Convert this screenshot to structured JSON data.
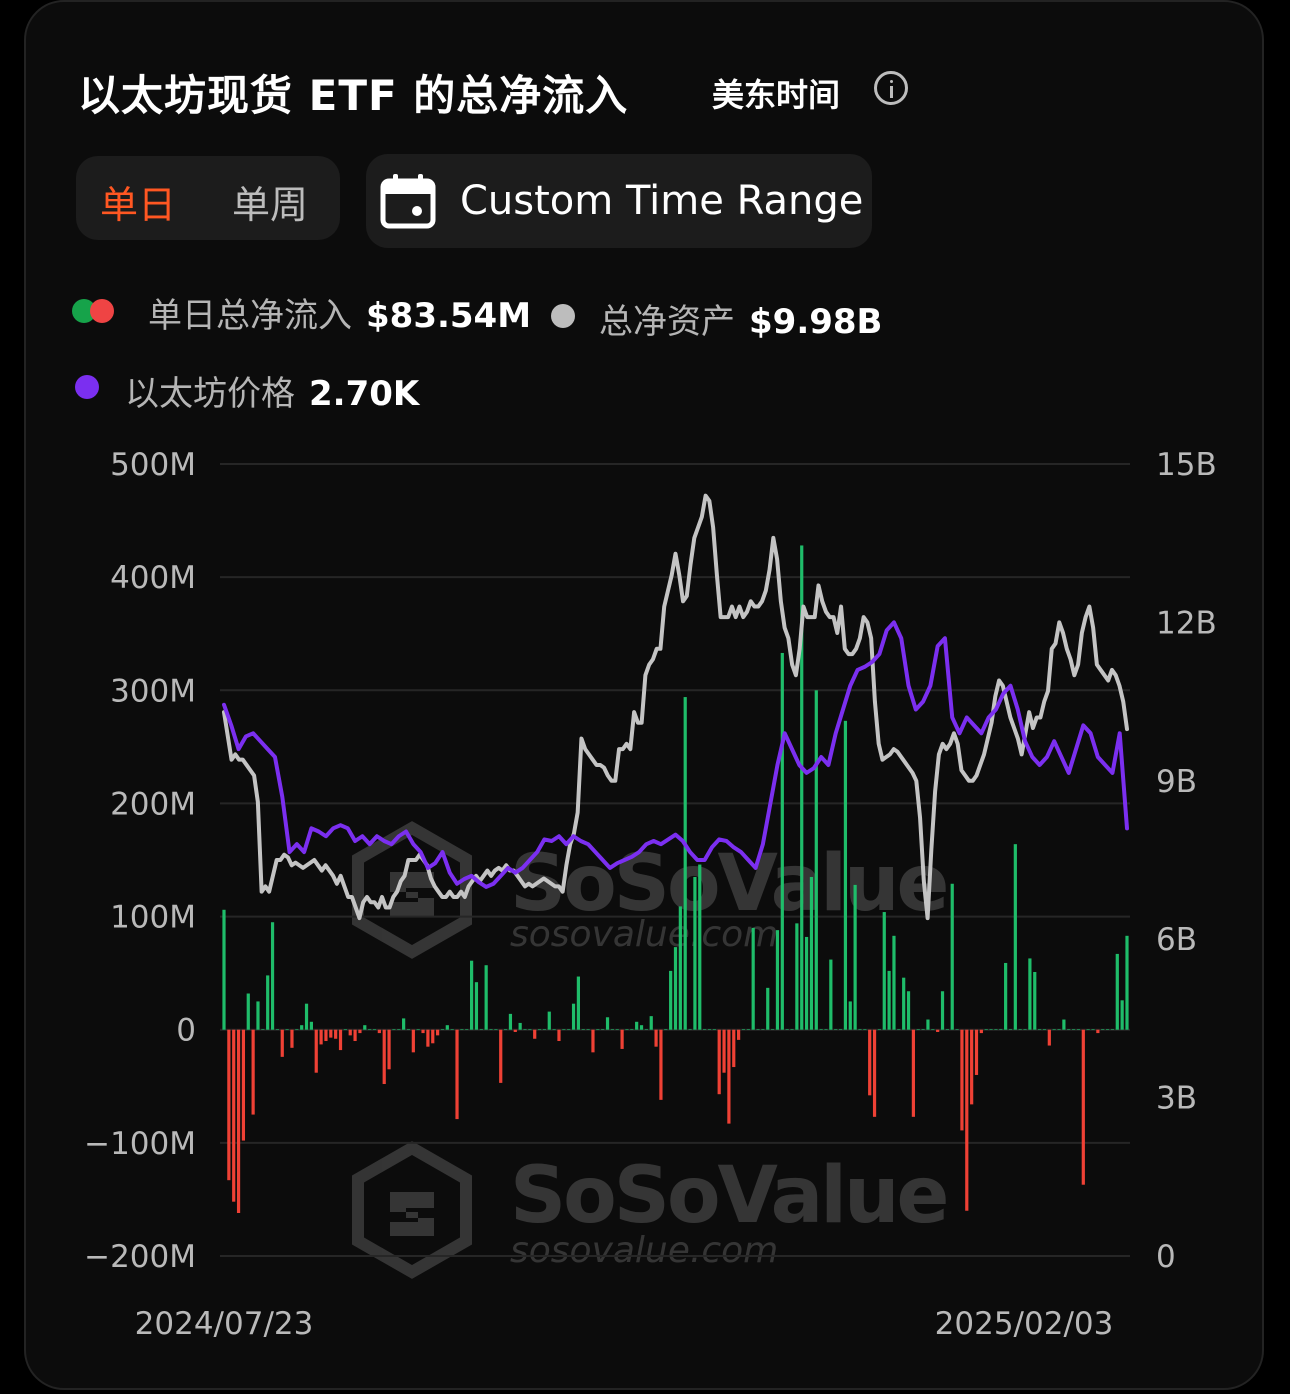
{
  "header": {
    "title": "以太坊现货 ETF 的总净流入",
    "timezone_label": "美东时间",
    "info_icon": "info-icon"
  },
  "period_toggle": {
    "daily_label": "单日",
    "weekly_label": "单周",
    "selected": "单日"
  },
  "range_button": {
    "label": "Custom Time Range",
    "icon": "calendar-icon"
  },
  "legend": {
    "daily_flow": {
      "name": "单日总净流入",
      "value": "$83.54M",
      "colors": [
        "#16a34a",
        "#ef4444"
      ]
    },
    "total_assets": {
      "name": "总净资产",
      "value": "$9.98B",
      "color": "#bdbdbd"
    },
    "eth_price": {
      "name": "以太坊价格",
      "value": "2.70K",
      "color": "#7c3aed"
    }
  },
  "watermark": {
    "brand": "SoSoValue",
    "url": "sosovalue.com"
  },
  "colors": {
    "inflow": "#1fbd6a",
    "outflow": "#ef4135",
    "assets_line": "#c4c4c4",
    "price_line": "#7b2ff0",
    "accent": "#ff5722"
  },
  "chart_data": {
    "type": "bar",
    "title": "以太坊现货 ETF 的总净流入",
    "x_start": "2024/07/23",
    "x_end": "2025/02/03",
    "x_tick_labels": [
      "2024/07/23",
      "2025/02/03"
    ],
    "left_axis": {
      "ticks": [
        500,
        400,
        300,
        200,
        100,
        0,
        -100,
        -200
      ],
      "tick_labels": [
        "500M",
        "400M",
        "300M",
        "200M",
        "100M",
        "0",
        "−100M",
        "−200M"
      ],
      "ylim": [
        -200,
        500
      ],
      "unit": "M"
    },
    "right_axis": {
      "ticks": [
        15,
        12,
        9,
        6,
        3,
        0
      ],
      "tick_labels": [
        "15B",
        "12B",
        "9B",
        "6B",
        "3B",
        "0"
      ],
      "ylim": [
        0,
        15
      ],
      "unit": "B"
    },
    "grid": true,
    "series": [
      {
        "name": "单日总净流入",
        "type": "bar",
        "axis": "left",
        "values": [
          106,
          -133,
          -152,
          -162,
          -98,
          32,
          -75,
          25,
          0,
          48,
          95,
          0,
          -24,
          0,
          -16,
          0,
          4,
          23,
          7,
          -38,
          -13,
          -10,
          -7,
          -8,
          -18,
          0,
          -5,
          -10,
          -3,
          4,
          0,
          0,
          -3,
          -48,
          -35,
          0,
          0,
          10,
          0,
          -20,
          0,
          -3,
          -15,
          -12,
          -5,
          0,
          4,
          0,
          -79,
          0,
          0,
          61,
          42,
          0,
          57,
          0,
          0,
          -47,
          0,
          14,
          -2,
          6,
          0,
          0,
          -8,
          0,
          0,
          16,
          0,
          -10,
          0,
          0,
          23,
          47,
          0,
          0,
          -20,
          0,
          0,
          11,
          0,
          0,
          -17,
          0,
          0,
          7,
          4,
          0,
          12,
          -15,
          -62,
          0,
          52,
          73,
          109,
          294,
          0,
          135,
          146,
          0,
          0,
          0,
          -57,
          -38,
          -83,
          -33,
          -9,
          0,
          0,
          90,
          0,
          0,
          37,
          0,
          88,
          333,
          0,
          0,
          94,
          428,
          82,
          135,
          300,
          0,
          0,
          62,
          0,
          0,
          273,
          25,
          128,
          0,
          0,
          -58,
          -77,
          0,
          104,
          52,
          83,
          0,
          46,
          34,
          -77,
          0,
          0,
          9,
          0,
          -2,
          34,
          0,
          129,
          0,
          -89,
          -160,
          -66,
          -40,
          -3,
          0,
          0,
          0,
          0,
          59,
          0,
          164,
          0,
          0,
          63,
          51,
          0,
          0,
          -14,
          0,
          0,
          9,
          0,
          0,
          0,
          -137,
          0,
          0,
          -3,
          0,
          0,
          0,
          67,
          26,
          83
        ]
      },
      {
        "name": "总净资产",
        "type": "line",
        "axis": "right",
        "values": [
          10.3,
          9.85,
          9.4,
          9.5,
          9.4,
          9.4,
          9.3,
          9.2,
          9.1,
          8.6,
          6.9,
          7.0,
          6.9,
          7.2,
          7.5,
          7.5,
          7.6,
          7.55,
          7.4,
          7.45,
          7.4,
          7.35,
          7.4,
          7.45,
          7.5,
          7.4,
          7.3,
          7.4,
          7.3,
          7.2,
          7.05,
          7.2,
          7.0,
          6.8,
          6.8,
          6.6,
          6.4,
          6.7,
          6.8,
          6.7,
          6.7,
          6.6,
          6.8,
          6.6,
          6.6,
          6.8,
          6.9,
          7.1,
          7.2,
          7.5,
          7.5,
          7.5,
          7.6,
          7.5,
          7.4,
          7.15,
          7.0,
          6.9,
          6.8,
          6.8,
          6.9,
          6.8,
          6.8,
          6.9,
          6.8,
          7.0,
          7.1,
          7.2,
          7.1,
          7.2,
          7.3,
          7.2,
          7.3,
          7.35,
          7.3,
          7.4,
          7.3,
          7.3,
          7.2,
          7.1,
          7.0,
          7.05,
          7.0,
          7.05,
          7.1,
          7.15,
          7.1,
          7.05,
          7.0,
          7.0,
          6.9,
          7.4,
          7.8,
          8.0,
          8.4,
          9.8,
          9.6,
          9.5,
          9.4,
          9.3,
          9.3,
          9.25,
          9.1,
          9.0,
          9.0,
          9.6,
          9.6,
          9.7,
          9.6,
          10.3,
          10.1,
          10.1,
          11.0,
          11.2,
          11.3,
          11.5,
          11.5,
          12.3,
          12.6,
          12.9,
          13.3,
          12.9,
          12.4,
          12.5,
          13.1,
          13.6,
          13.8,
          14.0,
          14.4,
          14.3,
          13.8,
          12.9,
          12.1,
          12.1,
          12.1,
          12.3,
          12.1,
          12.3,
          12.1,
          12.2,
          12.4,
          12.3,
          12.3,
          12.4,
          12.6,
          13.0,
          13.6,
          13.2,
          12.4,
          11.9,
          11.7,
          11.2,
          11.0,
          11.5,
          12.3,
          12.1,
          12.1,
          12.1,
          12.7,
          12.4,
          12.2,
          12.1,
          12.1,
          11.8,
          12.3,
          11.5,
          11.4,
          11.4,
          11.5,
          11.7,
          12.1,
          12.0,
          11.7,
          10.5,
          9.7,
          9.4,
          9.45,
          9.5,
          9.6,
          9.55,
          9.45,
          9.35,
          9.25,
          9.15,
          9.0,
          8.3,
          7.1,
          6.4,
          7.7,
          8.8,
          9.5,
          9.7,
          9.6,
          9.7,
          9.9,
          9.7,
          9.2,
          9.1,
          9.0,
          9.0,
          9.1,
          9.3,
          9.5,
          9.8,
          10.1,
          10.6,
          10.9,
          10.8,
          10.5,
          10.2,
          10.0,
          9.8,
          9.5,
          9.9,
          10.3,
          10.0,
          10.2,
          10.2,
          10.5,
          10.7,
          11.5,
          11.6,
          12.0,
          11.8,
          11.5,
          11.3,
          11.0,
          11.2,
          11.8,
          12.1,
          12.3,
          11.9,
          11.2,
          11.1,
          11.0,
          10.9,
          11.1,
          11.0,
          10.8,
          10.5,
          9.98
        ]
      },
      {
        "name": "以太坊价格",
        "type": "line",
        "axis": "right",
        "unit": "K",
        "values": [
          3.48,
          3.35,
          3.2,
          3.28,
          3.3,
          3.25,
          3.2,
          3.15,
          2.9,
          2.55,
          2.6,
          2.55,
          2.7,
          2.68,
          2.65,
          2.7,
          2.72,
          2.7,
          2.62,
          2.65,
          2.6,
          2.65,
          2.62,
          2.6,
          2.65,
          2.68,
          2.6,
          2.55,
          2.45,
          2.48,
          2.55,
          2.42,
          2.35,
          2.38,
          2.4,
          2.36,
          2.33,
          2.35,
          2.4,
          2.45,
          2.42,
          2.45,
          2.5,
          2.55,
          2.63,
          2.62,
          2.65,
          2.6,
          2.65,
          2.62,
          2.6,
          2.55,
          2.5,
          2.45,
          2.48,
          2.5,
          2.52,
          2.55,
          2.6,
          2.62,
          2.6,
          2.63,
          2.66,
          2.62,
          2.55,
          2.5,
          2.5,
          2.58,
          2.63,
          2.62,
          2.58,
          2.55,
          2.5,
          2.45,
          2.6,
          2.85,
          3.1,
          3.3,
          3.2,
          3.1,
          3.05,
          3.08,
          3.15,
          3.1,
          3.3,
          3.45,
          3.6,
          3.7,
          3.72,
          3.75,
          3.8,
          3.95,
          4.0,
          3.9,
          3.6,
          3.45,
          3.5,
          3.6,
          3.85,
          3.9,
          3.4,
          3.3,
          3.4,
          3.35,
          3.3,
          3.4,
          3.45,
          3.55,
          3.6,
          3.45,
          3.25,
          3.15,
          3.1,
          3.15,
          3.25,
          3.15,
          3.05,
          3.2,
          3.35,
          3.3,
          3.15,
          3.1,
          3.05,
          3.3,
          2.7
        ]
      }
    ]
  }
}
